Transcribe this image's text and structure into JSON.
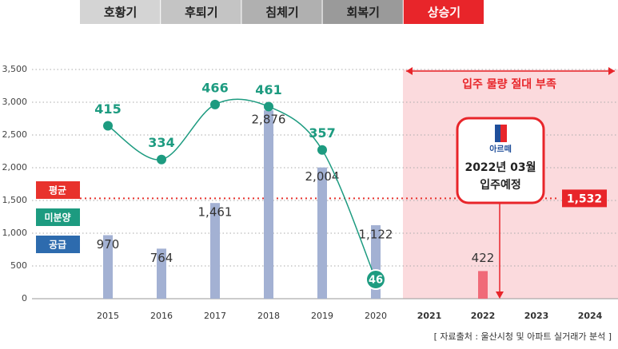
{
  "chart_data": {
    "type": "bar",
    "phases": [
      {
        "name": "호황기",
        "color": "#d4d4d4"
      },
      {
        "name": "후퇴기",
        "color": "#c4c4c4"
      },
      {
        "name": "침체기",
        "color": "#b0b0b0"
      },
      {
        "name": "회복기",
        "color": "#9a9a9a"
      },
      {
        "name": "상승기",
        "color": "#e8252a"
      }
    ],
    "categories": [
      "2015",
      "2016",
      "2017",
      "2018",
      "2019",
      "2020",
      "2021",
      "2022",
      "2023",
      "2024"
    ],
    "forecast_from": 6,
    "series": [
      {
        "name": "공급",
        "color": "#a3b1d3",
        "legend_color": "#2d6bae",
        "highlight_color": "#f06a78",
        "values": [
          970,
          764,
          1461,
          2876,
          2004,
          1122,
          null,
          422,
          null,
          null
        ],
        "value_labels": [
          "970",
          "764",
          "1,461",
          "2,876",
          "2,004",
          "1,122",
          null,
          "422",
          null,
          null
        ]
      },
      {
        "name": "미분양",
        "color": "#1d9b80",
        "legend_color": "#1d9b80",
        "axis": "y2",
        "values": [
          415,
          334,
          466,
          461,
          357,
          46,
          null,
          null,
          null,
          null
        ]
      }
    ],
    "average": {
      "name": "평균",
      "value": 1532,
      "label": "1,532",
      "color": "#e8322c"
    },
    "region_label": "입주 물량 절대 부족",
    "callout": {
      "brand": "아르떼",
      "lines": [
        "2022년 03월",
        "입주예정"
      ]
    },
    "source": "[ 자료출처 : 울산시청 및 아파트 실거래가 분석 ]",
    "ylim": [
      0,
      3500
    ],
    "yticks": [
      0,
      500,
      {
        "value": 1000,
        "label": "1,000"
      },
      {
        "value": 1500,
        "label": "1,500"
      },
      {
        "value": 2000,
        "label": "2,000"
      },
      {
        "value": 2500,
        "label": "2,500"
      },
      {
        "value": 3000,
        "label": "3,000"
      },
      {
        "value": 3500,
        "label": "3,500"
      }
    ],
    "y2lim": [
      0,
      550
    ],
    "grid": true
  }
}
